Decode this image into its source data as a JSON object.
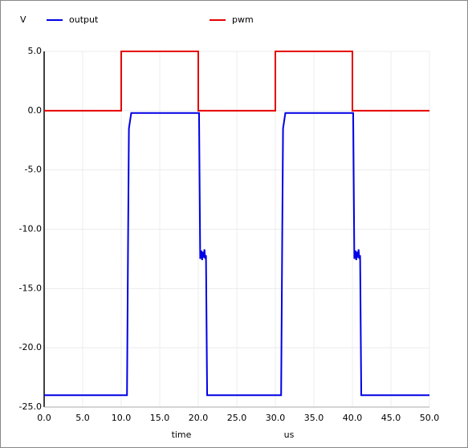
{
  "chart_data": {
    "type": "line",
    "y_axis_label": "V",
    "x_axis_label": "time",
    "x_axis_unit": "us",
    "series": [
      {
        "name": "output",
        "color": "#0000e6",
        "x": [
          0,
          10.75,
          10.9,
          11.0,
          11.3,
          20.1,
          20.25,
          20.4,
          20.5,
          20.6,
          20.7,
          20.8,
          20.9,
          21.0,
          21.15,
          30.75,
          30.9,
          31.0,
          31.3,
          40.1,
          40.25,
          40.4,
          40.5,
          40.6,
          40.7,
          40.8,
          40.9,
          41.0,
          41.15,
          50
        ],
        "values": [
          -24,
          -24,
          -10,
          -1.5,
          -0.2,
          -0.2,
          -12.5,
          -11.8,
          -12.6,
          -11.9,
          -12.4,
          -11.7,
          -12.5,
          -12.2,
          -24,
          -24,
          -10,
          -1.5,
          -0.2,
          -0.2,
          -12.5,
          -11.8,
          -12.6,
          -11.9,
          -12.4,
          -11.7,
          -12.5,
          -12.2,
          -24,
          -24
        ]
      },
      {
        "name": "pwm",
        "color": "#e60000",
        "x": [
          0,
          10,
          10,
          20,
          20,
          30,
          30,
          40,
          40,
          50
        ],
        "values": [
          0,
          0,
          5,
          5,
          0,
          0,
          5,
          5,
          0,
          0
        ]
      }
    ],
    "xlim": [
      0,
      50
    ],
    "ylim": [
      -25,
      5
    ],
    "xticks": [
      {
        "value": 0,
        "label": "0.0"
      },
      {
        "value": 5,
        "label": "5.0"
      },
      {
        "value": 10,
        "label": "10.0"
      },
      {
        "value": 15,
        "label": "15.0"
      },
      {
        "value": 20,
        "label": "20.0"
      },
      {
        "value": 25,
        "label": "25.0"
      },
      {
        "value": 30,
        "label": "30.0"
      },
      {
        "value": 35,
        "label": "35.0"
      },
      {
        "value": 40,
        "label": "40.0"
      },
      {
        "value": 45,
        "label": "45.0"
      },
      {
        "value": 50,
        "label": "50.0"
      }
    ],
    "yticks": [
      {
        "value": 5,
        "label": "5.0"
      },
      {
        "value": 0,
        "label": "0.0"
      },
      {
        "value": -5,
        "label": "-5.0"
      },
      {
        "value": -10,
        "label": "-10.0"
      },
      {
        "value": -15,
        "label": "-15.0"
      },
      {
        "value": -20,
        "label": "-20.0"
      },
      {
        "value": -25,
        "label": "-25.0"
      }
    ],
    "grid": true
  }
}
